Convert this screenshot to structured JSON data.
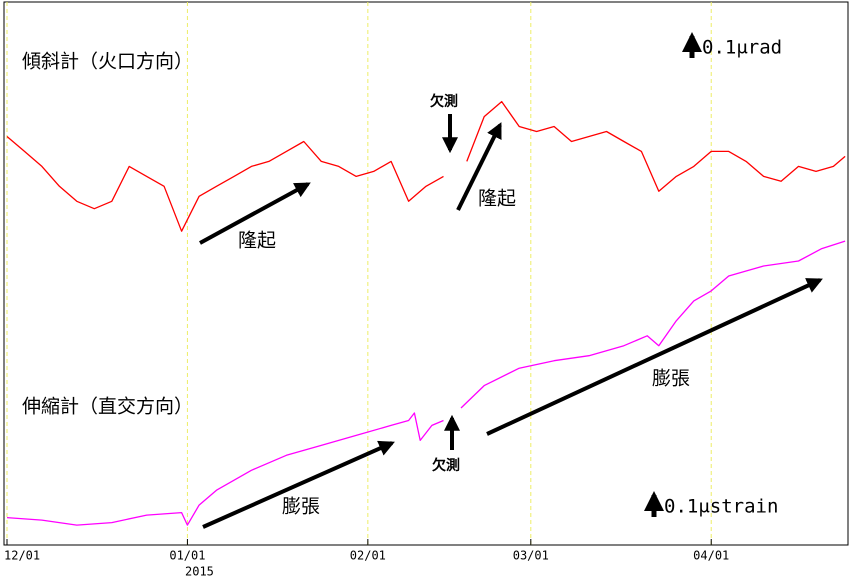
{
  "chart_data": {
    "type": "line",
    "annotations": {
      "tilt_label": "傾斜計（火口方向）",
      "strain_label": "伸縮計（直交方向）",
      "uplift_1": "隆起",
      "uplift_2": "隆起",
      "missing_1": "欠測",
      "missing_2": "欠測",
      "expansion_1": "膨張",
      "expansion_2": "膨張",
      "tilt_scale": "0.1μrad",
      "strain_scale": "0.1μstrain",
      "year": "2015"
    },
    "xlim": [
      0,
      144.5
    ],
    "xticks": [
      {
        "value": 0,
        "label": "12/01"
      },
      {
        "value": 31,
        "label": "01/01"
      },
      {
        "value": 62,
        "label": "02/01"
      },
      {
        "value": 90,
        "label": "03/01"
      },
      {
        "value": 121,
        "label": "04/01"
      }
    ],
    "ylim": [
      -1.18,
      1.0
    ],
    "y2lim": [
      0,
      2.18
    ],
    "grid": true,
    "series": [
      {
        "name": "傾斜計（火口方向）",
        "color": "#ff0000",
        "x": [
          0,
          3,
          6,
          9,
          12,
          15,
          18,
          21,
          24,
          27,
          30,
          33,
          36,
          39,
          42,
          45,
          48,
          51,
          54,
          57,
          60,
          63,
          66,
          69,
          72,
          75,
          76,
          79,
          82,
          85,
          88,
          91,
          94,
          97,
          100,
          103,
          106,
          109,
          112,
          115,
          118,
          121,
          124,
          127,
          130,
          133,
          136,
          139,
          142,
          144
        ],
        "values": [
          0.46,
          0.4,
          0.34,
          0.26,
          0.2,
          0.17,
          0.2,
          0.34,
          0.3,
          0.26,
          0.08,
          0.22,
          0.26,
          0.3,
          0.34,
          0.36,
          0.4,
          0.44,
          0.36,
          0.34,
          0.3,
          0.32,
          0.36,
          0.2,
          0.26,
          0.3,
          null,
          0.36,
          0.54,
          0.6,
          0.5,
          0.48,
          0.5,
          0.44,
          0.46,
          0.48,
          0.44,
          0.4,
          0.24,
          0.3,
          0.34,
          0.4,
          0.4,
          0.36,
          0.3,
          0.28,
          0.34,
          0.32,
          0.34,
          0.38
        ]
      },
      {
        "name": "伸縮計（直交方向）",
        "color": "#ff00ff",
        "axis": "y2",
        "x": [
          0,
          6,
          12,
          18,
          24,
          30,
          31,
          33,
          36,
          42,
          48,
          54,
          60,
          66,
          69,
          70,
          71,
          73,
          75,
          76,
          78,
          82,
          88,
          94,
          100,
          106,
          110,
          112,
          115,
          118,
          121,
          124,
          127,
          130,
          136,
          140,
          144
        ],
        "values": [
          0.11,
          0.1,
          0.08,
          0.09,
          0.12,
          0.13,
          0.08,
          0.16,
          0.22,
          0.3,
          0.36,
          0.4,
          0.44,
          0.48,
          0.5,
          0.53,
          0.42,
          0.48,
          0.5,
          null,
          0.55,
          0.64,
          0.71,
          0.74,
          0.76,
          0.8,
          0.84,
          0.8,
          0.9,
          0.98,
          1.02,
          1.08,
          1.1,
          1.12,
          1.14,
          1.19,
          1.22
        ]
      }
    ]
  }
}
